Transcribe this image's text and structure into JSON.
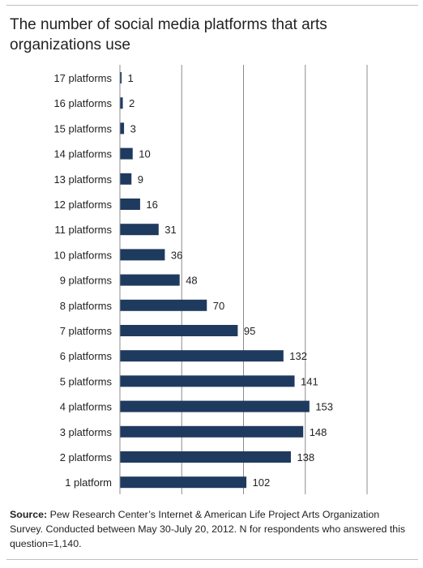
{
  "title": "The number of social media platforms that arts organizations use",
  "source": {
    "label": "Source:",
    "text": "Pew Research Center’s Internet & American Life Project Arts Organization Survey. Conducted between May 30-July 20, 2012. N for respondents who answered this question=1,140."
  },
  "chart_data": {
    "type": "bar",
    "orientation": "horizontal",
    "title": "The number of social media platforms that arts organizations use",
    "categories": [
      "17 platforms",
      "16 platforms",
      "15 platforms",
      "14 platforms",
      "13 platforms",
      "12 platforms",
      "11 platforms",
      "10 platforms",
      "9 platforms",
      "8 platforms",
      "7 platforms",
      "6 platforms",
      "5 platforms",
      "4 platforms",
      "3 platforms",
      "2 platforms",
      "1 platform"
    ],
    "values": [
      1,
      2,
      3,
      10,
      9,
      16,
      31,
      36,
      48,
      70,
      95,
      132,
      141,
      153,
      148,
      138,
      102
    ],
    "xlim": [
      0,
      200
    ],
    "gridlines": [
      50,
      100,
      150,
      200
    ],
    "grid": true,
    "bar_color": "#1f3a5f"
  }
}
